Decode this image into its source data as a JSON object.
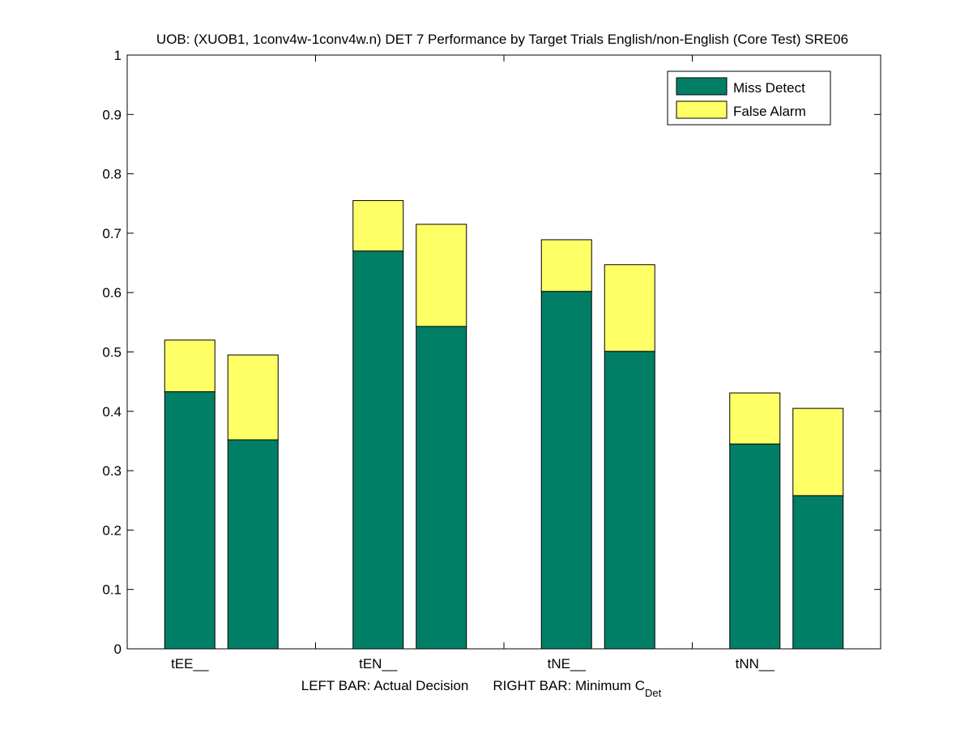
{
  "chart_data": {
    "type": "bar",
    "stacked": true,
    "title": "UOB: (XUOB1, 1conv4w-1conv4w.n) DET 7 Performance by Target Trials English/non-English (Core Test) SRE06",
    "xlabel": {
      "left_part": "LEFT BAR: Actual Decision",
      "right_part": "RIGHT BAR: Minimum C",
      "right_sub": "Det"
    },
    "categories": [
      "tEE__",
      "tEN__",
      "tNE__",
      "tNN__"
    ],
    "bars_per_category": [
      "Actual Decision",
      "Minimum CDet"
    ],
    "series": [
      {
        "name": "Miss Detect",
        "color": "#007f66",
        "values": [
          [
            0.433,
            0.352
          ],
          [
            0.67,
            0.543
          ],
          [
            0.602,
            0.501
          ],
          [
            0.345,
            0.258
          ]
        ]
      },
      {
        "name": "False Alarm",
        "color": "#ffff66",
        "values": [
          [
            0.087,
            0.143
          ],
          [
            0.085,
            0.172
          ],
          [
            0.087,
            0.146
          ],
          [
            0.086,
            0.147
          ]
        ]
      }
    ],
    "totals": [
      [
        0.52,
        0.495
      ],
      [
        0.755,
        0.715
      ],
      [
        0.689,
        0.647
      ],
      [
        0.431,
        0.405
      ]
    ],
    "ylim": [
      0,
      1
    ],
    "yticks": [
      "0",
      "0.1",
      "0.2",
      "0.3",
      "0.4",
      "0.5",
      "0.6",
      "0.7",
      "0.8",
      "0.9",
      "1"
    ],
    "legend": {
      "placement": "top-right",
      "entries": [
        "Miss Detect",
        "False Alarm"
      ]
    },
    "grid": false
  }
}
